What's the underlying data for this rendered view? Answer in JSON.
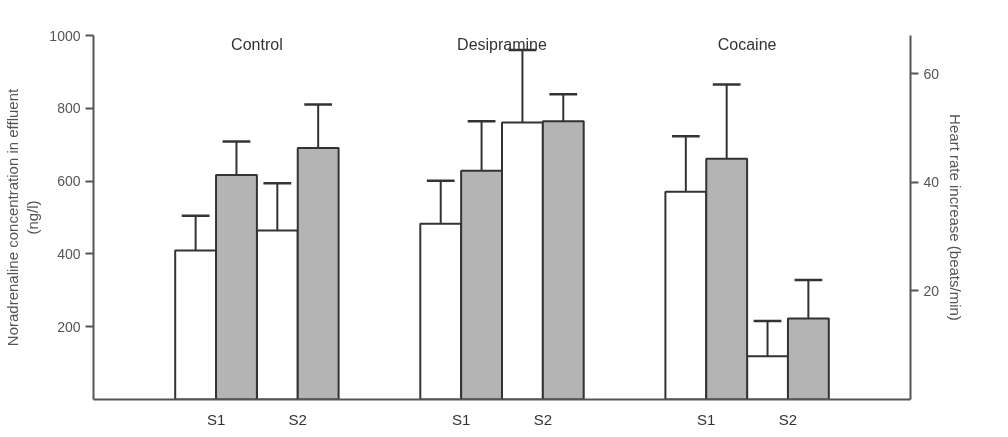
{
  "chart_data": {
    "type": "bar",
    "categories": [
      null,
      "S1",
      "S2",
      null,
      "S1",
      "S2",
      null,
      "S1",
      "S2",
      null
    ],
    "series": [
      {
        "color": "#ffffff",
        "values": [
          null,
          409,
          464,
          null,
          483,
          761,
          null,
          571,
          119,
          null
        ],
        "errors": [
          null,
          [
            409,
            505
          ],
          [
            464,
            594
          ],
          null,
          [
            483,
            601
          ],
          [
            761,
            960
          ],
          null,
          [
            571,
            723
          ],
          [
            119,
            216
          ],
          null
        ]
      },
      {
        "color": "#b4b4b4",
        "axis": "y2",
        "values": [
          null,
          41.3,
          46.3,
          null,
          42.1,
          51.2,
          null,
          44.3,
          14.9,
          null
        ],
        "errors": [
          null,
          [
            41.3,
            47.5
          ],
          [
            46.3,
            54.3
          ],
          null,
          [
            42.1,
            51.2
          ],
          [
            51.2,
            56.2
          ],
          null,
          [
            44.3,
            58
          ],
          [
            14.9,
            22.0
          ],
          null
        ]
      }
    ],
    "annotations": [
      "Control",
      "Desipramine",
      "Cocaine"
    ],
    "ylabel": "Noradrenaline concentration in effluent\n(ng/l)",
    "y2label": "Heart rate increase (beats/min)",
    "ylim": [
      0,
      1000
    ],
    "yticks": [
      200,
      400,
      600,
      800,
      1000
    ],
    "y2lim": [
      0,
      67
    ],
    "y2ticks": [
      20,
      40,
      60
    ],
    "grid": false
  }
}
